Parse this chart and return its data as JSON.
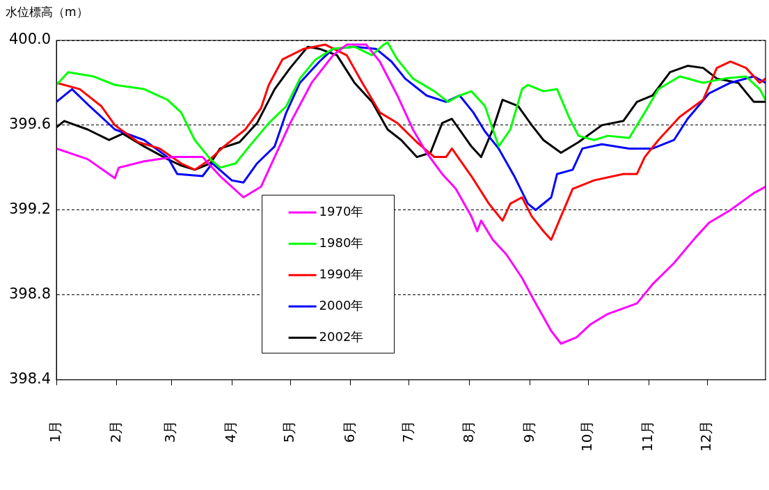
{
  "chart_data": {
    "type": "line",
    "ylabel": "水位標高（m）",
    "xlim": [
      "--01-01",
      "--12-31"
    ],
    "xticks": [
      {
        "value": "--01-01",
        "label": "1月"
      },
      {
        "value": "--02-01",
        "label": "2月"
      },
      {
        "value": "--03-01",
        "label": "3月"
      },
      {
        "value": "--04-01",
        "label": "4月"
      },
      {
        "value": "--05-01",
        "label": "5月"
      },
      {
        "value": "--06-01",
        "label": "6月"
      },
      {
        "value": "--07-01",
        "label": "7月"
      },
      {
        "value": "--08-01",
        "label": "8月"
      },
      {
        "value": "--09-01",
        "label": "9月"
      },
      {
        "value": "--10-01",
        "label": "10月"
      },
      {
        "value": "--11-01",
        "label": "11月"
      },
      {
        "value": "--12-01",
        "label": "12月"
      }
    ],
    "ylim": [
      398.4,
      400.0
    ],
    "yticks": [
      {
        "value": 398.4,
        "label": "398.4"
      },
      {
        "value": 398.8,
        "label": "398.8"
      },
      {
        "value": 399.2,
        "label": "399.2"
      },
      {
        "value": 399.6,
        "label": "399.6"
      },
      {
        "value": 400.0,
        "label": "400.0"
      }
    ],
    "grid": "y",
    "legend": "center",
    "marker": "none",
    "line_style": "solid",
    "series": [
      {
        "name": "1970年",
        "color": "#ff00ff",
        "x": [
          "--01-01",
          "--01-17",
          "--01-31",
          "--02-02",
          "--02-15",
          "--03-02",
          "--03-17",
          "--03-26",
          "--04-07",
          "--04-16",
          "--04-23",
          "--05-01",
          "--05-12",
          "--05-23",
          "--05-30",
          "--06-09",
          "--06-16",
          "--06-25",
          "--07-03",
          "--07-10",
          "--07-18",
          "--07-25",
          "--08-02",
          "--08-05",
          "--08-07",
          "--08-13",
          "--08-20",
          "--08-28",
          "--09-04",
          "--09-12",
          "--09-17",
          "--09-25",
          "--10-02",
          "--10-11",
          "--10-26",
          "--11-03",
          "--11-14",
          "--11-25",
          "--12-02",
          "--12-13",
          "--12-25",
          "--12-31"
        ],
        "values": [
          399.49,
          399.44,
          399.35,
          399.4,
          399.43,
          399.45,
          399.45,
          399.36,
          399.26,
          399.31,
          399.45,
          399.61,
          399.8,
          399.93,
          399.98,
          399.98,
          399.9,
          399.74,
          399.58,
          399.47,
          399.37,
          399.3,
          399.17,
          399.1,
          399.15,
          399.06,
          398.99,
          398.88,
          398.76,
          398.63,
          398.57,
          398.6,
          398.66,
          398.71,
          398.76,
          398.85,
          398.95,
          399.07,
          399.14,
          399.2,
          399.28,
          399.31
        ]
      },
      {
        "name": "1980年",
        "color": "#00ff00",
        "x": [
          "--01-01",
          "--01-07",
          "--01-20",
          "--01-31",
          "--02-15",
          "--02-27",
          "--03-06",
          "--03-13",
          "--03-21",
          "--03-26",
          "--04-03",
          "--04-10",
          "--04-20",
          "--04-29",
          "--05-06",
          "--05-14",
          "--05-23",
          "--06-03",
          "--06-12",
          "--06-18",
          "--06-20",
          "--06-25",
          "--07-03",
          "--07-14",
          "--07-21",
          "--07-27",
          "--08-02",
          "--08-09",
          "--08-16",
          "--08-22",
          "--08-28",
          "--08-31",
          "--09-08",
          "--09-15",
          "--09-21",
          "--09-26",
          "--10-04",
          "--10-11",
          "--10-22",
          "--10-30",
          "--11-06",
          "--11-17",
          "--11-29",
          "--12-10",
          "--12-21",
          "--12-28",
          "--12-31"
        ],
        "values": [
          399.79,
          399.85,
          399.83,
          399.79,
          399.77,
          399.72,
          399.66,
          399.53,
          399.44,
          399.4,
          399.42,
          399.5,
          399.61,
          399.69,
          399.82,
          399.91,
          399.96,
          399.97,
          399.93,
          399.98,
          399.99,
          399.91,
          399.82,
          399.76,
          399.71,
          399.74,
          399.76,
          399.69,
          399.5,
          399.58,
          399.77,
          399.79,
          399.76,
          399.77,
          399.64,
          399.55,
          399.53,
          399.55,
          399.54,
          399.66,
          399.77,
          399.83,
          399.8,
          399.82,
          399.83,
          399.77,
          399.72
        ]
      },
      {
        "name": "1990年",
        "color": "#ff0000",
        "x": [
          "--01-01",
          "--01-13",
          "--01-24",
          "--01-31",
          "--02-12",
          "--02-23",
          "--03-06",
          "--03-13",
          "--03-21",
          "--03-28",
          "--04-08",
          "--04-16",
          "--04-20",
          "--04-27",
          "--05-08",
          "--05-19",
          "--05-30",
          "--06-07",
          "--06-16",
          "--06-25",
          "--07-05",
          "--07-14",
          "--07-20",
          "--07-23",
          "--08-02",
          "--08-11",
          "--08-18",
          "--08-22",
          "--08-28",
          "--09-02",
          "--09-08",
          "--09-12",
          "--09-17",
          "--09-23",
          "--10-04",
          "--10-19",
          "--10-26",
          "--10-30",
          "--11-06",
          "--11-17",
          "--11-29",
          "--12-06",
          "--12-13",
          "--12-21",
          "--12-28",
          "--12-31"
        ],
        "values": [
          399.8,
          399.77,
          399.69,
          399.6,
          399.52,
          399.49,
          399.42,
          399.39,
          399.44,
          399.5,
          399.58,
          399.68,
          399.79,
          399.91,
          399.96,
          399.98,
          399.93,
          399.8,
          399.66,
          399.61,
          399.52,
          399.45,
          399.45,
          399.49,
          399.36,
          399.23,
          399.15,
          399.23,
          399.26,
          399.17,
          399.1,
          399.06,
          399.17,
          399.3,
          399.34,
          399.37,
          399.37,
          399.45,
          399.53,
          399.64,
          399.72,
          399.87,
          399.9,
          399.87,
          399.8,
          399.82
        ]
      },
      {
        "name": "2000年",
        "color": "#0000ff",
        "x": [
          "--01-01",
          "--01-09",
          "--01-18",
          "--01-31",
          "--02-15",
          "--02-27",
          "--03-04",
          "--03-17",
          "--03-22",
          "--04-01",
          "--04-07",
          "--04-14",
          "--04-23",
          "--04-29",
          "--05-06",
          "--05-16",
          "--05-23",
          "--06-03",
          "--06-14",
          "--06-22",
          "--06-29",
          "--07-10",
          "--07-20",
          "--07-27",
          "--08-03",
          "--08-09",
          "--08-16",
          "--08-24",
          "--08-31",
          "--09-04",
          "--09-12",
          "--09-15",
          "--09-23",
          "--09-28",
          "--10-08",
          "--10-22",
          "--11-03",
          "--11-14",
          "--11-21",
          "--12-02",
          "--12-13",
          "--12-25",
          "--12-31"
        ],
        "values": [
          399.71,
          399.77,
          399.69,
          399.58,
          399.53,
          399.45,
          399.37,
          399.36,
          399.42,
          399.34,
          399.33,
          399.42,
          399.5,
          399.66,
          399.8,
          399.9,
          399.96,
          399.97,
          399.96,
          399.9,
          399.82,
          399.74,
          399.71,
          399.74,
          399.66,
          399.57,
          399.49,
          399.36,
          399.23,
          399.2,
          399.26,
          399.37,
          399.39,
          399.49,
          399.51,
          399.49,
          399.49,
          399.53,
          399.63,
          399.75,
          399.8,
          399.83,
          399.8
        ]
      },
      {
        "name": "2002年",
        "color": "#000000",
        "x": [
          "--01-01",
          "--01-05",
          "--01-17",
          "--01-28",
          "--02-04",
          "--02-15",
          "--02-27",
          "--03-06",
          "--03-13",
          "--03-21",
          "--03-26",
          "--04-05",
          "--04-14",
          "--04-23",
          "--05-01",
          "--05-10",
          "--05-16",
          "--05-25",
          "--06-03",
          "--06-12",
          "--06-20",
          "--06-27",
          "--07-05",
          "--07-12",
          "--07-18",
          "--07-23",
          "--08-02",
          "--08-07",
          "--08-13",
          "--08-18",
          "--08-26",
          "--09-02",
          "--09-08",
          "--09-17",
          "--09-26",
          "--10-08",
          "--10-19",
          "--10-26",
          "--11-03",
          "--11-12",
          "--11-21",
          "--11-29",
          "--12-06",
          "--12-17",
          "--12-25",
          "--12-31"
        ],
        "values": [
          399.59,
          399.62,
          399.58,
          399.53,
          399.56,
          399.5,
          399.44,
          399.41,
          399.39,
          399.42,
          399.49,
          399.52,
          399.61,
          399.77,
          399.87,
          399.97,
          399.96,
          399.93,
          399.8,
          399.71,
          399.58,
          399.53,
          399.45,
          399.47,
          399.61,
          399.63,
          399.5,
          399.45,
          399.58,
          399.72,
          399.69,
          399.6,
          399.53,
          399.47,
          399.52,
          399.6,
          399.62,
          399.71,
          399.74,
          399.85,
          399.88,
          399.87,
          399.82,
          399.8,
          399.71,
          399.71
        ]
      }
    ]
  }
}
